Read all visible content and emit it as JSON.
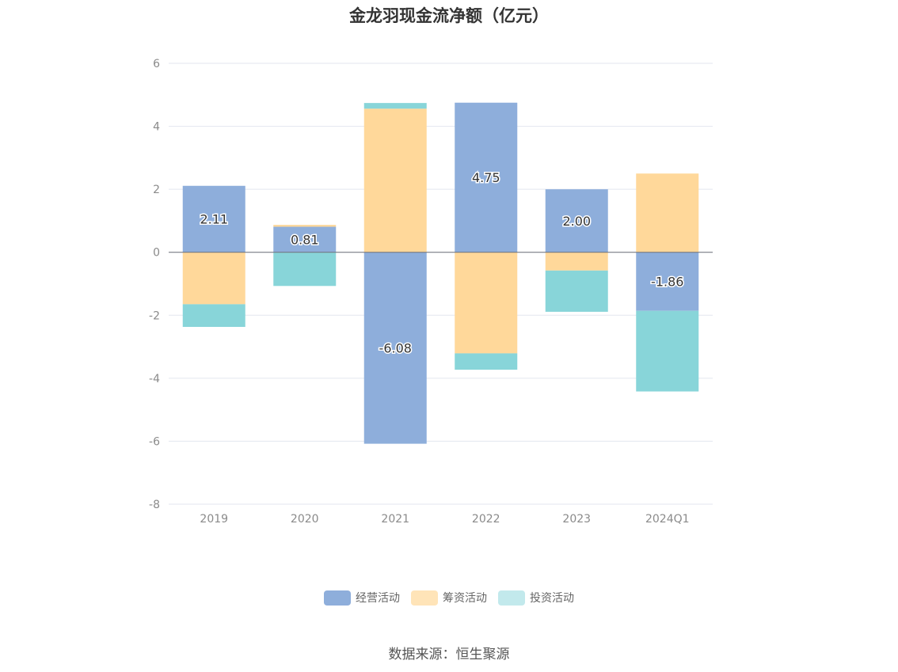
{
  "title": "金龙羽现金流净额（亿元）",
  "source": "数据来源：恒生聚源",
  "chart_data": {
    "type": "bar",
    "stacked": true,
    "title": "金龙羽现金流净额（亿元）",
    "categories": [
      "2019",
      "2020",
      "2021",
      "2022",
      "2023",
      "2024Q1"
    ],
    "ylim": [
      -8,
      6
    ],
    "yticks": [
      6,
      4,
      2,
      0,
      -2,
      -4,
      -6,
      -8
    ],
    "grid": true,
    "legend_position": "bottom",
    "series": [
      {
        "name": "经营活动",
        "color": "#8eaedb",
        "values": [
          2.11,
          0.81,
          -6.08,
          4.75,
          2.0,
          -1.86
        ],
        "labels": [
          "2.11",
          "0.81",
          "-6.08",
          "4.75",
          "2.00",
          "-1.86"
        ]
      },
      {
        "name": "筹资活动",
        "color": "#ffd89a",
        "values": [
          -1.65,
          0.06,
          4.56,
          -3.21,
          -0.58,
          2.5
        ]
      },
      {
        "name": "投资活动",
        "color": "#88d5d9",
        "values": [
          -0.72,
          -1.07,
          0.18,
          -0.52,
          -1.31,
          -2.56
        ]
      }
    ]
  }
}
